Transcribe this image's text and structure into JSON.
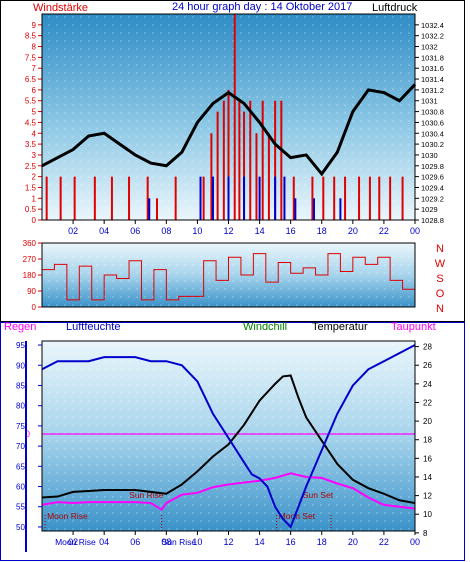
{
  "title": "24 hour graph day : 14 Oktober 2017",
  "colors": {
    "red": "#e00000",
    "blue": "#0000cc",
    "black": "#000000",
    "green": "#008000",
    "magenta": "#ff00ff",
    "navy": "#000080",
    "sky_top": "#2f8fc8",
    "sky_bottom": "#eaf6fb"
  },
  "chart_data": [
    {
      "type": "line",
      "id": "wind-pressure",
      "labels": {
        "left": "Windstärke",
        "right": "Luftdruck"
      },
      "x_ticks": [
        "02",
        "04",
        "06",
        "08",
        "10",
        "12",
        "14",
        "16",
        "18",
        "20",
        "22",
        "00"
      ],
      "left_ticks": [
        "0",
        "0.5",
        "1",
        "1.5",
        "2",
        "2.5",
        "3",
        "3.5",
        "4",
        "4.5",
        "5",
        "5.5",
        "6",
        "6.5",
        "7",
        "7.5",
        "8",
        "8.5",
        "9"
      ],
      "right_ticks": [
        "1028.8",
        "1029",
        "1029.2",
        "1029.4",
        "1029.6",
        "1029.8",
        "1030",
        "1030.2",
        "1030.4",
        "1030.6",
        "1030.8",
        "1031",
        "1031.2",
        "1031.4",
        "1031.6",
        "1031.8",
        "1032",
        "1032.2",
        "1032.4"
      ],
      "ylim_left": [
        0,
        9.5
      ],
      "ylim_right": [
        1028.8,
        1032.6
      ],
      "series": [
        {
          "name": "Luftdruck",
          "axis": "right",
          "color": "#000000",
          "x": [
            0,
            1,
            2,
            3,
            4,
            5,
            6,
            7,
            8,
            9,
            10,
            11,
            12,
            13,
            14,
            15,
            16,
            17,
            18,
            19,
            20,
            21,
            22,
            23,
            24
          ],
          "values": [
            1029.8,
            1029.95,
            1030.1,
            1030.35,
            1030.4,
            1030.2,
            1030.0,
            1029.85,
            1029.8,
            1030.05,
            1030.6,
            1030.95,
            1031.15,
            1030.95,
            1030.6,
            1030.2,
            1029.95,
            1030.0,
            1029.65,
            1030.05,
            1030.8,
            1031.2,
            1031.15,
            1031.0,
            1031.3
          ]
        },
        {
          "name": "Windstärke (böen)",
          "axis": "left",
          "color": "#e00000",
          "x": [
            0.3,
            1.2,
            2.1,
            3.4,
            4.5,
            5.6,
            6.8,
            7.4,
            8.6,
            10.4,
            10.9,
            11.3,
            11.7,
            12.0,
            12.4,
            12.7,
            13.0,
            13.4,
            13.8,
            14.2,
            14.6,
            15.0,
            15.4,
            16.2,
            17.4,
            18.1,
            18.8,
            19.5,
            20.4,
            21.1,
            21.7,
            22.4,
            23.2
          ],
          "values": [
            2,
            2,
            2,
            2,
            2,
            2,
            2,
            1,
            2,
            2,
            4,
            5,
            5.5,
            6,
            9.5,
            5.5,
            5,
            5.5,
            4,
            5.5,
            4,
            5.5,
            5.5,
            2,
            2,
            2,
            2,
            2,
            2,
            2,
            2,
            2,
            2
          ]
        },
        {
          "name": "Windstärke (mittel)",
          "axis": "left",
          "color": "#0000cc",
          "x": [
            6.9,
            10.2,
            11,
            12,
            13,
            14,
            15,
            15.6,
            16.3,
            17.5,
            19.2
          ],
          "values": [
            1,
            2,
            2,
            2,
            2,
            2,
            2,
            2,
            1,
            1,
            1
          ]
        }
      ]
    },
    {
      "type": "line",
      "id": "wind-direction",
      "labels": {
        "directions": [
          "N",
          "W",
          "S",
          "O",
          "N"
        ]
      },
      "left_ticks": [
        "0",
        "90",
        "180",
        "270",
        "360"
      ],
      "ylim": [
        0,
        360
      ],
      "series": [
        {
          "name": "Windrichtung",
          "color": "#e00000",
          "x": [
            0,
            0.8,
            1.6,
            2.4,
            3.2,
            4,
            4.8,
            5.6,
            6.4,
            7.2,
            8,
            8.8,
            9.6,
            10.4,
            11.2,
            12,
            12.8,
            13.6,
            14.4,
            15.2,
            16,
            16.8,
            17.6,
            18.4,
            19.2,
            20,
            20.8,
            21.6,
            22.4,
            23.2,
            24
          ],
          "values": [
            210,
            240,
            40,
            230,
            40,
            180,
            160,
            260,
            40,
            210,
            40,
            60,
            60,
            260,
            150,
            280,
            180,
            300,
            140,
            250,
            190,
            220,
            180,
            300,
            200,
            280,
            240,
            280,
            150,
            100,
            190
          ]
        }
      ]
    },
    {
      "type": "line",
      "id": "temp-humidity",
      "labels": {
        "regen": "Regen",
        "luftfeuchte": "Luftfeuchte",
        "windchill": "Windchill",
        "temperatur": "Temperatur",
        "taupunkt": "Taupunkt"
      },
      "x_ticks": [
        "02",
        "04",
        "06",
        "08",
        "10",
        "12",
        "14",
        "16",
        "18",
        "20",
        "22",
        "00"
      ],
      "left_ticks": [
        "50",
        "55",
        "60",
        "65",
        "70",
        "75",
        "80",
        "85",
        "90",
        "95"
      ],
      "right_ticks": [
        "8",
        "10",
        "12",
        "14",
        "16",
        "18",
        "20",
        "22",
        "24",
        "26",
        "28"
      ],
      "zero_label": "0",
      "ylim_left": [
        49,
        96
      ],
      "ylim_right": [
        8.2,
        28.6
      ],
      "annotations": [
        {
          "text": "Moon Rise",
          "x": 0.2
        },
        {
          "text": "Sun Rise",
          "x": 7.7
        },
        {
          "text": "Moon Set",
          "x": 15.1
        },
        {
          "text": "Sun Set",
          "x": 18.6
        }
      ],
      "x_overlay": [
        {
          "text": "Moon Rise",
          "x": 0.2
        },
        {
          "text": "Sun Rise",
          "x": 7.7
        }
      ],
      "series": [
        {
          "name": "Luftfeuchte",
          "axis": "left",
          "color": "#0000cc",
          "x": [
            0,
            0.5,
            1,
            2,
            3,
            4,
            5,
            6,
            7,
            8,
            9,
            10,
            11,
            12,
            13,
            13.5,
            14,
            14.5,
            15,
            15.5,
            16,
            16.5,
            17,
            18,
            19,
            20,
            21,
            22,
            23,
            24
          ],
          "values": [
            89,
            90,
            91,
            91,
            91,
            92,
            92,
            92,
            91,
            91,
            90,
            86,
            78,
            72,
            66,
            63,
            62,
            60,
            55,
            52,
            50,
            55,
            60,
            69,
            78,
            85,
            89,
            91,
            93,
            95
          ]
        },
        {
          "name": "Temperatur",
          "axis": "right",
          "color": "#000000",
          "x": [
            0,
            1,
            2,
            3,
            4,
            5,
            6,
            7,
            8,
            9,
            10,
            11,
            12,
            13,
            14,
            15,
            15.5,
            16,
            16.5,
            17,
            18,
            19,
            20,
            21,
            22,
            23,
            24
          ],
          "values": [
            11.8,
            11.9,
            12.4,
            12.5,
            12.6,
            12.6,
            12.6,
            12.4,
            12.2,
            13.2,
            14.6,
            16.2,
            17.5,
            19.6,
            22.2,
            24.0,
            24.8,
            24.9,
            22.5,
            20.4,
            17.9,
            15.4,
            13.7,
            12.8,
            12.2,
            11.5,
            11.2
          ]
        },
        {
          "name": "Taupunkt",
          "axis": "right",
          "color": "#ff00ff",
          "x": [
            0,
            1,
            2,
            3,
            4,
            5,
            6,
            7,
            7.7,
            8,
            9,
            10,
            11,
            12,
            13,
            14,
            15,
            16,
            17,
            18,
            19,
            20,
            21,
            22,
            23,
            24
          ],
          "values": [
            11.0,
            11.3,
            11.2,
            11.3,
            11.3,
            11.3,
            11.3,
            11.2,
            10.5,
            11.2,
            12.1,
            12.3,
            12.9,
            13.2,
            13.4,
            13.6,
            13.9,
            14.4,
            14.0,
            13.9,
            13.3,
            12.8,
            11.8,
            11.0,
            10.8,
            10.6
          ]
        }
      ]
    }
  ]
}
